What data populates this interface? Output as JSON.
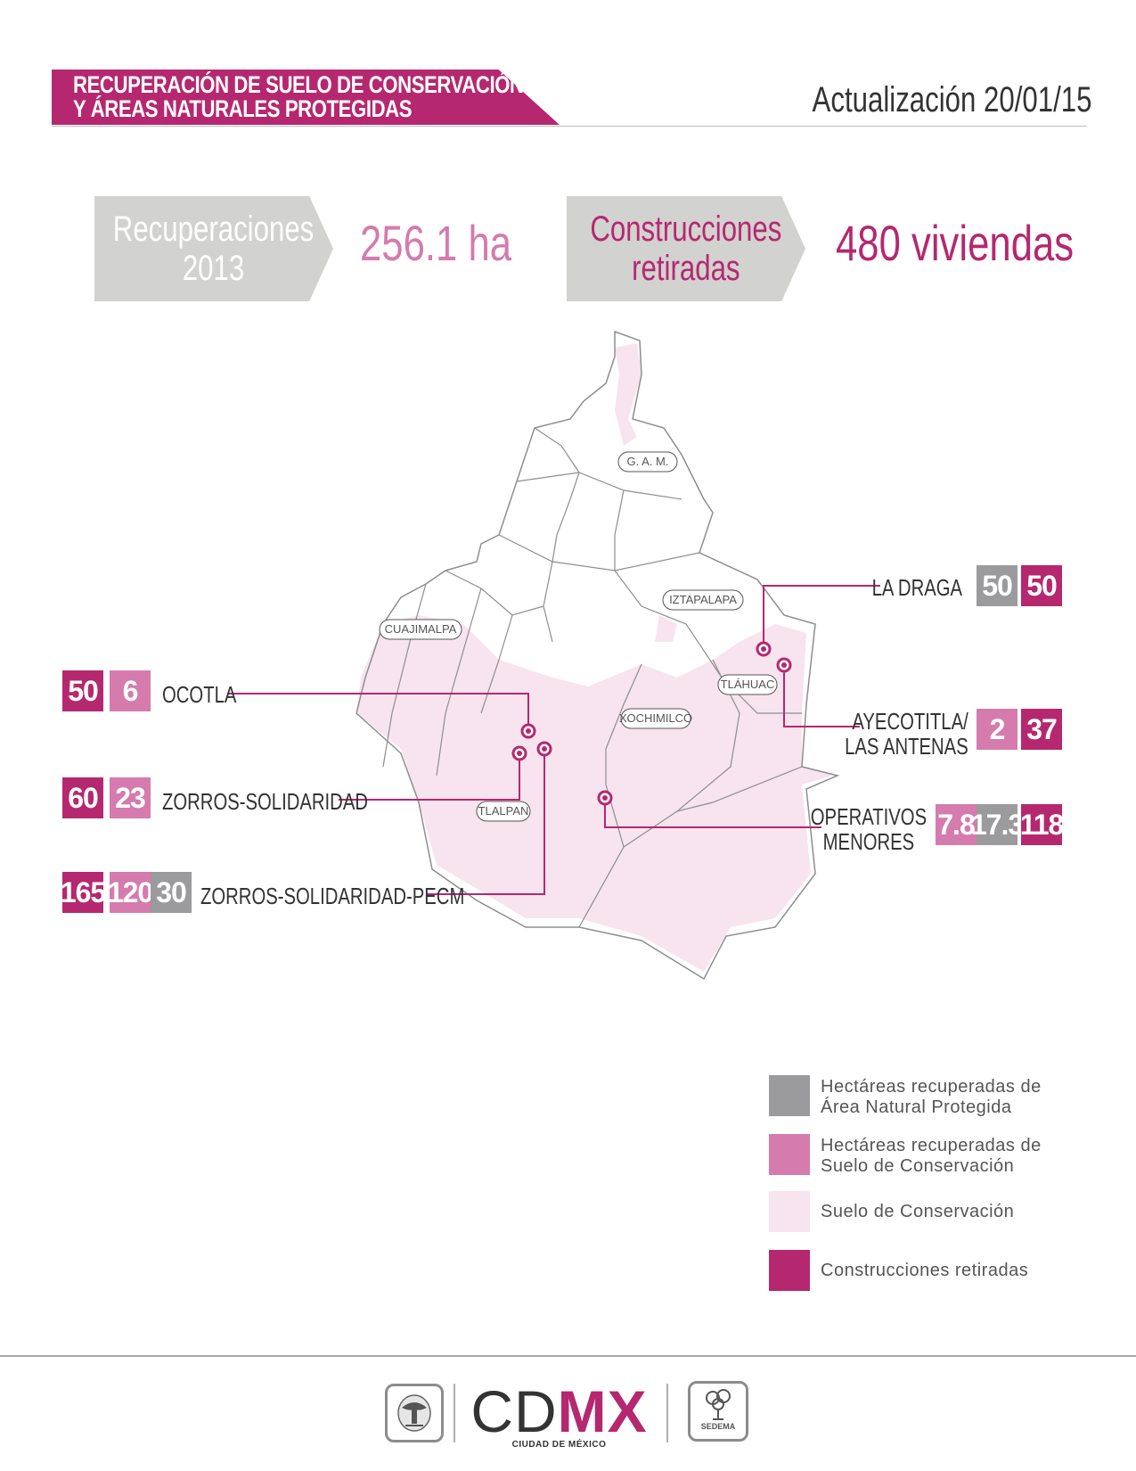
{
  "header": {
    "title_line1": "RECUPERACIÓN DE SUELO DE CONSERVACIÓN",
    "title_line2": "Y ÁREAS NATURALES PROTEGIDAS",
    "update": "Actualización 20/01/15"
  },
  "stats": {
    "recuperaciones_label_line1": "Recuperaciones",
    "recuperaciones_label_line2": "2013",
    "recuperaciones_value": "256.1 ha",
    "construcciones_label_line1": "Construcciones",
    "construcciones_label_line2": "retiradas",
    "construcciones_value": "480 viviendas"
  },
  "map": {
    "delegations": [
      "G. A. M.",
      "IZTAPALAPA",
      "CUAJIMALPA",
      "TLÁHUAC",
      "XOCHIMILCO",
      "TLALPAN"
    ]
  },
  "sites": [
    {
      "name": "OCOTLA",
      "values": [
        "50",
        "6"
      ]
    },
    {
      "name": "ZORROS-SOLIDARIDAD",
      "values": [
        "60",
        "23"
      ]
    },
    {
      "name": "ZORROS-SOLIDARIDAD-PECM",
      "values": [
        "165",
        "120",
        "30"
      ]
    },
    {
      "name": "LA DRAGA",
      "values": [
        "50",
        "50"
      ]
    },
    {
      "name_line1": "AYECOTITLA/",
      "name_line2": "LAS ANTENAS",
      "values": [
        "2",
        "37"
      ]
    },
    {
      "name_line1": "OPERATIVOS",
      "name_line2": "MENORES",
      "values": [
        "7.8",
        "17.3",
        "118"
      ]
    }
  ],
  "legend": [
    {
      "line1": "Hectáreas recuperadas de",
      "line2": "Área Natural Protegida",
      "color": "#9b9a9c"
    },
    {
      "line1": "Hectáreas recuperadas de",
      "line2": "Suelo de Conservación",
      "color": "#d57bae"
    },
    {
      "line1": "Suelo de Conservación",
      "color": "#f7e4ee"
    },
    {
      "line1": "Construcciones retiradas",
      "color": "#b5286f"
    }
  ],
  "footer": {
    "brand_plain": "CD",
    "brand_accent": "MX",
    "brand_sub": "CIUDAD DE MÉXICO",
    "sedema": "SEDEMA"
  },
  "colors": {
    "accent": "#b5286f",
    "pink": "#d57bae",
    "gray": "#9b9a9c",
    "light": "#f7e4ee"
  }
}
